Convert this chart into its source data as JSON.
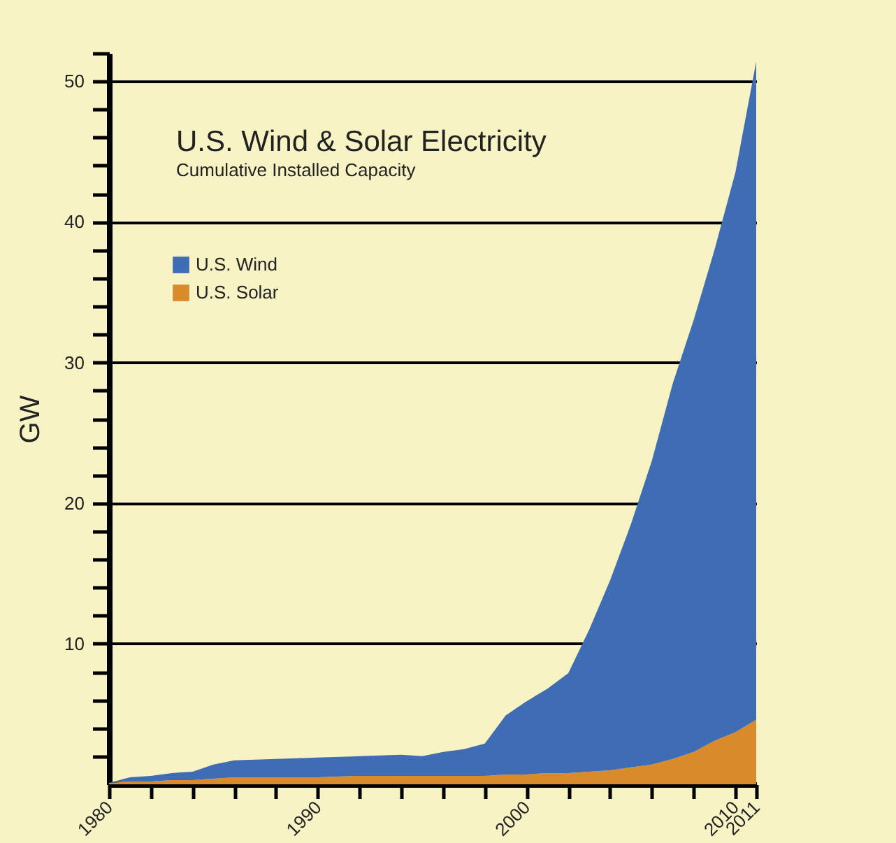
{
  "chart_data": {
    "type": "area",
    "title": "U.S. Wind & Solar Electricity",
    "subtitle": "Cumulative Installed Capacity",
    "ylabel": "GW",
    "stacked": true,
    "grid": "y",
    "legend": "top left",
    "x": [
      1980,
      1981,
      1982,
      1983,
      1984,
      1985,
      1986,
      1988,
      1990,
      1992,
      1994,
      1995,
      1996,
      1997,
      1998,
      1999,
      2000,
      2001,
      2002,
      2003,
      2004,
      2005,
      2006,
      2007,
      2008,
      2009,
      2010,
      2011
    ],
    "series": [
      {
        "name": "U.S. Solar",
        "color": "#d98b2b",
        "values": [
          0.1,
          0.2,
          0.2,
          0.3,
          0.3,
          0.4,
          0.5,
          0.5,
          0.5,
          0.6,
          0.6,
          0.6,
          0.6,
          0.6,
          0.6,
          0.7,
          0.7,
          0.8,
          0.8,
          0.9,
          1.0,
          1.2,
          1.4,
          1.8,
          2.3,
          3.1,
          3.7,
          4.6
        ]
      },
      {
        "name": "U.S. Wind",
        "color": "#3f6db3",
        "values": [
          0.0,
          0.3,
          0.4,
          0.5,
          0.6,
          1.0,
          1.2,
          1.3,
          1.4,
          1.4,
          1.5,
          1.4,
          1.7,
          1.9,
          2.3,
          4.2,
          5.2,
          6.0,
          7.1,
          10.1,
          13.5,
          17.3,
          21.6,
          26.7,
          30.7,
          34.9,
          39.8,
          46.8
        ]
      }
    ],
    "xlim": [
      1980,
      2011
    ],
    "xticks": [
      1980,
      {
        "value": 1982,
        "label": null
      },
      {
        "value": 1984,
        "label": null
      },
      {
        "value": 1986,
        "label": null
      },
      {
        "value": 1988,
        "label": null
      },
      1990,
      {
        "value": 1992,
        "label": null
      },
      {
        "value": 1994,
        "label": null
      },
      {
        "value": 1996,
        "label": null
      },
      {
        "value": 1998,
        "label": null
      },
      2000,
      {
        "value": 2002,
        "label": null
      },
      {
        "value": 2004,
        "label": null
      },
      {
        "value": 2006,
        "label": null
      },
      {
        "value": 2008,
        "label": null
      },
      2010,
      2011
    ],
    "ylim": [
      0,
      52
    ],
    "yticks": [
      {
        "value": 2,
        "label": null
      },
      {
        "value": 4,
        "label": null
      },
      {
        "value": 6,
        "label": null
      },
      {
        "value": 8,
        "label": null
      },
      10,
      {
        "value": 12,
        "label": null
      },
      {
        "value": 14,
        "label": null
      },
      {
        "value": 16,
        "label": null
      },
      {
        "value": 18,
        "label": null
      },
      20,
      {
        "value": 22,
        "label": null
      },
      {
        "value": 24,
        "label": null
      },
      {
        "value": 26,
        "label": null
      },
      {
        "value": 28,
        "label": null
      },
      30,
      {
        "value": 32,
        "label": null
      },
      {
        "value": 34,
        "label": null
      },
      {
        "value": 36,
        "label": null
      },
      {
        "value": 38,
        "label": null
      },
      40,
      {
        "value": 42,
        "label": null
      },
      {
        "value": 44,
        "label": null
      },
      {
        "value": 46,
        "label": null
      },
      {
        "value": 48,
        "label": null
      },
      50,
      {
        "value": 52,
        "label": null
      }
    ]
  }
}
